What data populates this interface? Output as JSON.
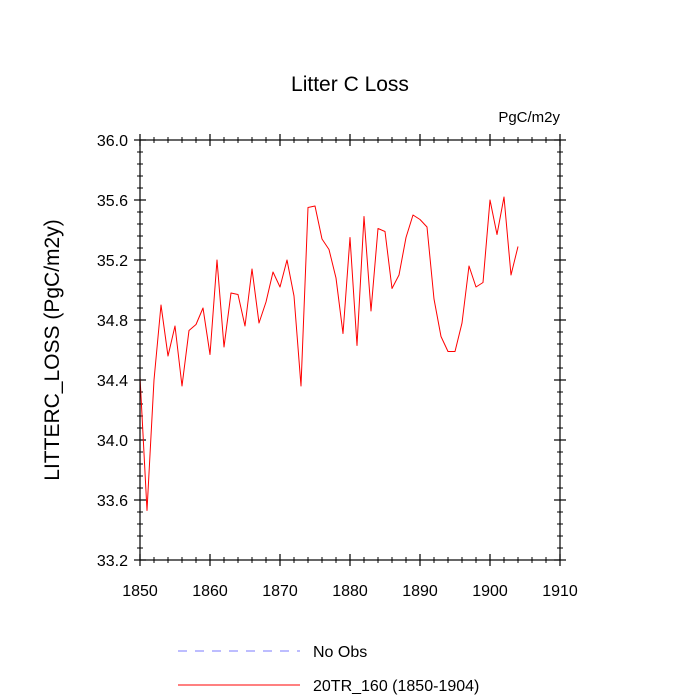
{
  "chart_data": {
    "type": "line",
    "title": "Litter C Loss",
    "units": "PgC/m2y",
    "xlabel": "",
    "ylabel": "LITTERC_LOSS  (PgC/m2y)",
    "xlim": [
      1850,
      1910
    ],
    "ylim": [
      33.2,
      36.0
    ],
    "xticks": [
      1850,
      1860,
      1870,
      1880,
      1890,
      1900,
      1910
    ],
    "yticks": [
      33.2,
      33.6,
      34.0,
      34.4,
      34.8,
      35.2,
      35.6,
      36.0
    ],
    "ytick_labels": [
      "33.2",
      "33.6",
      "34.0",
      "34.4",
      "34.8",
      "35.2",
      "35.6",
      "36.0"
    ],
    "series": [
      {
        "name": "No Obs",
        "color": "#7b7bff",
        "dash": "dashed",
        "values": []
      },
      {
        "name": "20TR_160 (1850-1904)",
        "color": "#ff0000",
        "dash": "solid",
        "x": [
          1850,
          1851,
          1852,
          1853,
          1854,
          1855,
          1856,
          1857,
          1858,
          1859,
          1860,
          1861,
          1862,
          1863,
          1864,
          1865,
          1866,
          1867,
          1868,
          1869,
          1870,
          1871,
          1872,
          1873,
          1874,
          1875,
          1876,
          1877,
          1878,
          1879,
          1880,
          1881,
          1882,
          1883,
          1884,
          1885,
          1886,
          1887,
          1888,
          1889,
          1890,
          1891,
          1892,
          1893,
          1894,
          1895,
          1896,
          1897,
          1898,
          1899,
          1900,
          1901,
          1902,
          1903,
          1904
        ],
        "values": [
          34.42,
          33.53,
          34.4,
          34.9,
          34.56,
          34.76,
          34.36,
          34.73,
          34.77,
          34.88,
          34.57,
          35.2,
          34.62,
          34.98,
          34.97,
          34.76,
          35.14,
          34.78,
          34.92,
          35.12,
          35.02,
          35.2,
          34.96,
          34.36,
          35.55,
          35.56,
          35.34,
          35.27,
          35.08,
          34.71,
          35.35,
          34.63,
          35.49,
          34.86,
          35.41,
          35.39,
          35.01,
          35.1,
          35.35,
          35.5,
          35.47,
          35.42,
          34.94,
          34.69,
          34.59,
          34.59,
          34.78,
          35.16,
          35.02,
          35.05,
          35.6,
          35.37,
          35.62,
          35.1,
          35.29
        ]
      }
    ],
    "legend_position": "bottom"
  }
}
